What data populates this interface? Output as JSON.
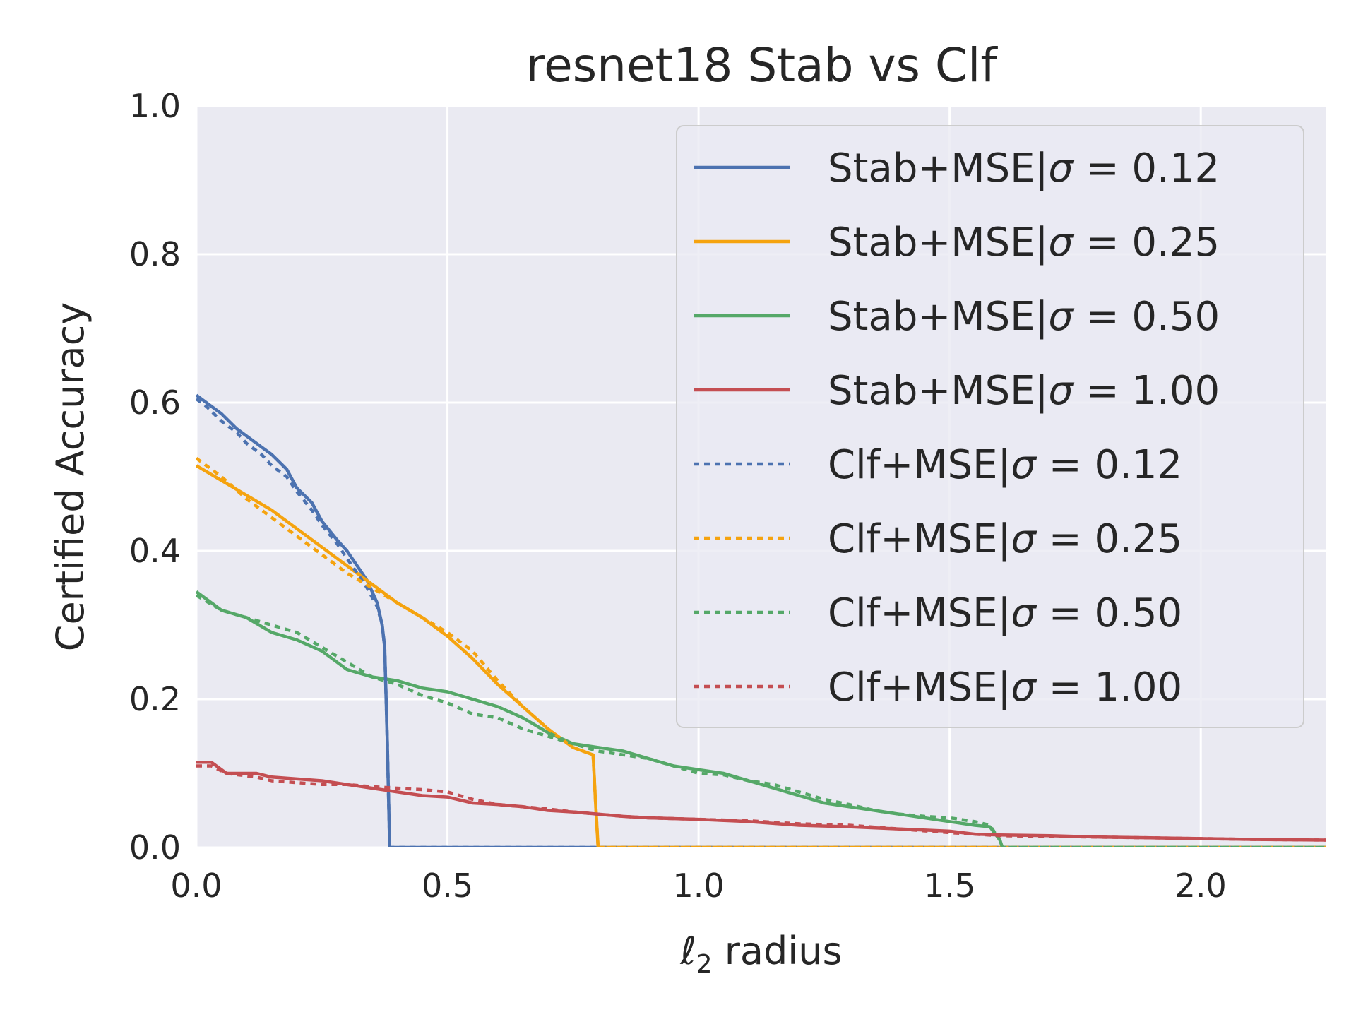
{
  "chart_data": {
    "type": "line",
    "title": "resnet18 Stab vs Clf",
    "xlabel_prefix": "ℓ",
    "xlabel_sub": "2",
    "xlabel_rest": " radius",
    "ylabel": "Certified Accuracy",
    "xlim": [
      0,
      2.25
    ],
    "ylim": [
      0,
      1.0
    ],
    "xticks": [
      "0.0",
      "0.5",
      "1.0",
      "1.5",
      "2.0"
    ],
    "xtick_values": [
      0,
      0.5,
      1.0,
      1.5,
      2.0
    ],
    "yticks": [
      "0.0",
      "0.2",
      "0.4",
      "0.6",
      "0.8",
      "1.0"
    ],
    "ytick_values": [
      0,
      0.2,
      0.4,
      0.6,
      0.8,
      1.0
    ],
    "grid": true,
    "legend_placement": "top-right",
    "series": [
      {
        "name": "Stab+MSE|σ = 0.12",
        "color": "#4c72b0",
        "style": "solid",
        "points": [
          [
            0,
            0.61
          ],
          [
            0.02,
            0.6
          ],
          [
            0.05,
            0.585
          ],
          [
            0.08,
            0.565
          ],
          [
            0.1,
            0.555
          ],
          [
            0.13,
            0.54
          ],
          [
            0.15,
            0.53
          ],
          [
            0.18,
            0.51
          ],
          [
            0.2,
            0.485
          ],
          [
            0.23,
            0.465
          ],
          [
            0.25,
            0.44
          ],
          [
            0.28,
            0.415
          ],
          [
            0.3,
            0.4
          ],
          [
            0.32,
            0.38
          ],
          [
            0.34,
            0.36
          ],
          [
            0.36,
            0.33
          ],
          [
            0.37,
            0.3
          ],
          [
            0.375,
            0.27
          ],
          [
            0.38,
            0.15
          ],
          [
            0.385,
            0.0
          ],
          [
            2.25,
            0.0
          ]
        ]
      },
      {
        "name": "Stab+MSE|σ = 0.25",
        "color": "#f5a30f",
        "style": "solid",
        "points": [
          [
            0,
            0.515
          ],
          [
            0.05,
            0.495
          ],
          [
            0.1,
            0.475
          ],
          [
            0.15,
            0.455
          ],
          [
            0.2,
            0.43
          ],
          [
            0.25,
            0.405
          ],
          [
            0.3,
            0.38
          ],
          [
            0.35,
            0.355
          ],
          [
            0.4,
            0.33
          ],
          [
            0.45,
            0.31
          ],
          [
            0.5,
            0.285
          ],
          [
            0.55,
            0.255
          ],
          [
            0.6,
            0.22
          ],
          [
            0.65,
            0.19
          ],
          [
            0.7,
            0.16
          ],
          [
            0.75,
            0.135
          ],
          [
            0.79,
            0.125
          ],
          [
            0.795,
            0.06
          ],
          [
            0.8,
            0.0
          ],
          [
            2.25,
            0.0
          ]
        ]
      },
      {
        "name": "Stab+MSE|σ = 0.50",
        "color": "#55a868",
        "style": "solid",
        "points": [
          [
            0,
            0.345
          ],
          [
            0.05,
            0.32
          ],
          [
            0.1,
            0.31
          ],
          [
            0.15,
            0.29
          ],
          [
            0.2,
            0.28
          ],
          [
            0.25,
            0.265
          ],
          [
            0.3,
            0.24
          ],
          [
            0.35,
            0.23
          ],
          [
            0.4,
            0.225
          ],
          [
            0.45,
            0.215
          ],
          [
            0.5,
            0.21
          ],
          [
            0.55,
            0.2
          ],
          [
            0.6,
            0.19
          ],
          [
            0.65,
            0.175
          ],
          [
            0.7,
            0.155
          ],
          [
            0.75,
            0.14
          ],
          [
            0.8,
            0.135
          ],
          [
            0.85,
            0.13
          ],
          [
            0.9,
            0.12
          ],
          [
            0.95,
            0.11
          ],
          [
            1.0,
            0.105
          ],
          [
            1.05,
            0.1
          ],
          [
            1.1,
            0.09
          ],
          [
            1.15,
            0.08
          ],
          [
            1.2,
            0.07
          ],
          [
            1.25,
            0.06
          ],
          [
            1.3,
            0.055
          ],
          [
            1.35,
            0.05
          ],
          [
            1.4,
            0.045
          ],
          [
            1.45,
            0.04
          ],
          [
            1.5,
            0.035
          ],
          [
            1.55,
            0.03
          ],
          [
            1.58,
            0.028
          ],
          [
            1.6,
            0.01
          ],
          [
            1.605,
            0.0
          ],
          [
            2.25,
            0.0
          ]
        ]
      },
      {
        "name": "Stab+MSE|σ = 1.00",
        "color": "#c44e52",
        "style": "solid",
        "points": [
          [
            0,
            0.115
          ],
          [
            0.03,
            0.115
          ],
          [
            0.06,
            0.1
          ],
          [
            0.12,
            0.1
          ],
          [
            0.15,
            0.095
          ],
          [
            0.25,
            0.09
          ],
          [
            0.3,
            0.085
          ],
          [
            0.35,
            0.08
          ],
          [
            0.4,
            0.075
          ],
          [
            0.45,
            0.07
          ],
          [
            0.5,
            0.068
          ],
          [
            0.55,
            0.06
          ],
          [
            0.6,
            0.058
          ],
          [
            0.65,
            0.055
          ],
          [
            0.7,
            0.05
          ],
          [
            0.75,
            0.048
          ],
          [
            0.8,
            0.045
          ],
          [
            0.85,
            0.042
          ],
          [
            0.9,
            0.04
          ],
          [
            1.0,
            0.038
          ],
          [
            1.1,
            0.035
          ],
          [
            1.2,
            0.03
          ],
          [
            1.3,
            0.028
          ],
          [
            1.4,
            0.025
          ],
          [
            1.5,
            0.022
          ],
          [
            1.55,
            0.018
          ],
          [
            1.6,
            0.017
          ],
          [
            1.7,
            0.016
          ],
          [
            1.8,
            0.014
          ],
          [
            1.9,
            0.013
          ],
          [
            2.0,
            0.012
          ],
          [
            2.1,
            0.011
          ],
          [
            2.25,
            0.01
          ]
        ]
      },
      {
        "name": "Clf+MSE|σ = 0.12",
        "color": "#4c72b0",
        "style": "dotted",
        "points": [
          [
            0,
            0.605
          ],
          [
            0.02,
            0.595
          ],
          [
            0.05,
            0.575
          ],
          [
            0.08,
            0.56
          ],
          [
            0.1,
            0.545
          ],
          [
            0.13,
            0.53
          ],
          [
            0.15,
            0.515
          ],
          [
            0.18,
            0.5
          ],
          [
            0.2,
            0.48
          ],
          [
            0.23,
            0.455
          ],
          [
            0.25,
            0.435
          ],
          [
            0.28,
            0.41
          ],
          [
            0.3,
            0.39
          ],
          [
            0.32,
            0.37
          ],
          [
            0.34,
            0.35
          ],
          [
            0.36,
            0.325
          ],
          [
            0.37,
            0.3
          ],
          [
            0.375,
            0.27
          ],
          [
            0.38,
            0.15
          ],
          [
            0.385,
            0.0
          ],
          [
            2.25,
            0.0
          ]
        ]
      },
      {
        "name": "Clf+MSE|σ = 0.25",
        "color": "#f5a30f",
        "style": "dotted",
        "points": [
          [
            0,
            0.525
          ],
          [
            0.05,
            0.5
          ],
          [
            0.1,
            0.47
          ],
          [
            0.15,
            0.445
          ],
          [
            0.2,
            0.42
          ],
          [
            0.25,
            0.395
          ],
          [
            0.3,
            0.37
          ],
          [
            0.35,
            0.35
          ],
          [
            0.4,
            0.33
          ],
          [
            0.45,
            0.31
          ],
          [
            0.5,
            0.29
          ],
          [
            0.55,
            0.265
          ],
          [
            0.6,
            0.225
          ],
          [
            0.65,
            0.19
          ],
          [
            0.7,
            0.16
          ],
          [
            0.75,
            0.135
          ],
          [
            0.79,
            0.125
          ],
          [
            0.795,
            0.06
          ],
          [
            0.8,
            0.0
          ],
          [
            2.25,
            0.0
          ]
        ]
      },
      {
        "name": "Clf+MSE|σ = 0.50",
        "color": "#55a868",
        "style": "dotted",
        "points": [
          [
            0,
            0.34
          ],
          [
            0.05,
            0.32
          ],
          [
            0.1,
            0.31
          ],
          [
            0.15,
            0.3
          ],
          [
            0.2,
            0.29
          ],
          [
            0.25,
            0.27
          ],
          [
            0.3,
            0.25
          ],
          [
            0.35,
            0.23
          ],
          [
            0.4,
            0.22
          ],
          [
            0.45,
            0.205
          ],
          [
            0.5,
            0.195
          ],
          [
            0.55,
            0.18
          ],
          [
            0.6,
            0.175
          ],
          [
            0.65,
            0.16
          ],
          [
            0.7,
            0.15
          ],
          [
            0.75,
            0.14
          ],
          [
            0.8,
            0.13
          ],
          [
            0.85,
            0.125
          ],
          [
            0.9,
            0.12
          ],
          [
            0.95,
            0.11
          ],
          [
            1.0,
            0.1
          ],
          [
            1.05,
            0.098
          ],
          [
            1.1,
            0.09
          ],
          [
            1.15,
            0.085
          ],
          [
            1.2,
            0.075
          ],
          [
            1.25,
            0.065
          ],
          [
            1.3,
            0.058
          ],
          [
            1.35,
            0.05
          ],
          [
            1.4,
            0.045
          ],
          [
            1.45,
            0.042
          ],
          [
            1.5,
            0.04
          ],
          [
            1.55,
            0.035
          ],
          [
            1.58,
            0.03
          ],
          [
            1.6,
            0.01
          ],
          [
            1.605,
            0.0
          ],
          [
            2.25,
            0.0
          ]
        ]
      },
      {
        "name": "Clf+MSE|σ = 1.00",
        "color": "#c44e52",
        "style": "dotted",
        "points": [
          [
            0,
            0.11
          ],
          [
            0.03,
            0.11
          ],
          [
            0.06,
            0.1
          ],
          [
            0.12,
            0.095
          ],
          [
            0.15,
            0.09
          ],
          [
            0.25,
            0.085
          ],
          [
            0.3,
            0.085
          ],
          [
            0.35,
            0.082
          ],
          [
            0.4,
            0.08
          ],
          [
            0.45,
            0.078
          ],
          [
            0.5,
            0.075
          ],
          [
            0.55,
            0.065
          ],
          [
            0.6,
            0.058
          ],
          [
            0.65,
            0.055
          ],
          [
            0.7,
            0.052
          ],
          [
            0.75,
            0.048
          ],
          [
            0.8,
            0.045
          ],
          [
            0.85,
            0.042
          ],
          [
            0.9,
            0.04
          ],
          [
            1.0,
            0.038
          ],
          [
            1.1,
            0.036
          ],
          [
            1.2,
            0.032
          ],
          [
            1.3,
            0.03
          ],
          [
            1.4,
            0.025
          ],
          [
            1.5,
            0.02
          ],
          [
            1.55,
            0.018
          ],
          [
            1.6,
            0.016
          ],
          [
            1.7,
            0.015
          ],
          [
            1.8,
            0.014
          ],
          [
            1.9,
            0.013
          ],
          [
            2.0,
            0.012
          ],
          [
            2.1,
            0.011
          ],
          [
            2.25,
            0.01
          ]
        ]
      }
    ]
  }
}
